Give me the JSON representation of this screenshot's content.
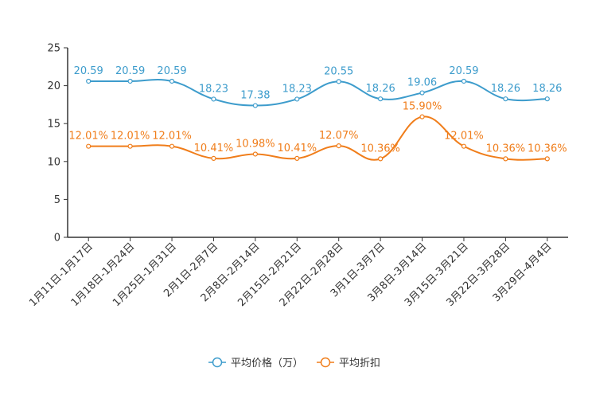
{
  "chart_data": {
    "type": "line",
    "title": "",
    "xlabel": "",
    "ylabel": "",
    "ylim": [
      0,
      25
    ],
    "yticks": [
      0,
      5,
      10,
      15,
      20,
      25
    ],
    "grid": false,
    "legend_position": "bottom-center",
    "categories": [
      "1月11日-1月17日",
      "1月18日-1月24日",
      "1月25日-1月31日",
      "2月1日-2月7日",
      "2月8日-2月14日",
      "2月15日-2月21日",
      "2月22日-2月28日",
      "3月1日-3月7日",
      "3月8日-3月14日",
      "3月15日-3月21日",
      "3月22日-3月28日",
      "3月29日-4月4日"
    ],
    "series": [
      {
        "name": "平均价格（万）",
        "color": "#3d9ccc",
        "values": [
          20.59,
          20.59,
          20.59,
          18.23,
          17.38,
          18.23,
          20.55,
          18.26,
          19.06,
          20.59,
          18.26,
          18.26
        ],
        "labels": [
          "20.59",
          "20.59",
          "20.59",
          "18.23",
          "17.38",
          "18.23",
          "20.55",
          "18.26",
          "19.06",
          "20.59",
          "18.26",
          "18.26"
        ]
      },
      {
        "name": "平均折扣",
        "color": "#f07d1a",
        "values": [
          12.01,
          12.01,
          12.01,
          10.41,
          10.98,
          10.41,
          12.07,
          10.36,
          15.9,
          12.01,
          10.36,
          10.36
        ],
        "labels": [
          "12.01%",
          "12.01%",
          "12.01%",
          "10.41%",
          "10.98%",
          "10.41%",
          "12.07%",
          "10.36%",
          "15.90%",
          "12.01%",
          "10.36%",
          "10.36%"
        ]
      }
    ]
  }
}
